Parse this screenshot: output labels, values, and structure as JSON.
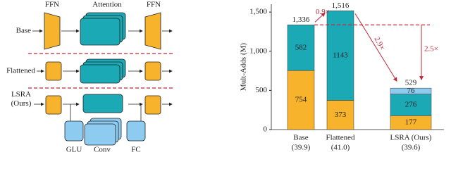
{
  "diagram": {
    "column_labels": [
      "FFN",
      "Attention",
      "FFN"
    ],
    "row_labels": [
      "Base",
      "Flattened",
      "LSRA\n(Ours)"
    ],
    "branch_labels": [
      "GLU",
      "Conv",
      "FC"
    ]
  },
  "chart_data": {
    "type": "stacked-bar",
    "y_label": "Mult-Adds (M)",
    "categories": [
      "Base",
      "Flattened",
      "LSRA (Ours)"
    ],
    "category_notes": [
      "(39.9)",
      "(41.0)",
      "(39.6)"
    ],
    "series": [
      {
        "color": "#f7b32b",
        "values": [
          754,
          373,
          177
        ]
      },
      {
        "color": "#1ba9b5",
        "values": [
          582,
          1143,
          276
        ]
      },
      {
        "color": "#8ecbf0",
        "values": [
          null,
          null,
          76
        ]
      }
    ],
    "totals": [
      {
        "value": 1336,
        "label": "1,336"
      },
      {
        "value": 1516,
        "label": "1,516"
      },
      {
        "value": 529,
        "label": "529"
      }
    ],
    "annotations": [
      "0.9×",
      "2.9×",
      "2.5×"
    ],
    "ylim": [
      0,
      1600
    ],
    "yticks": [
      0,
      500,
      {
        "value": 1000,
        "label": "1,000"
      },
      {
        "value": 1500,
        "label": "1,500"
      }
    ]
  }
}
